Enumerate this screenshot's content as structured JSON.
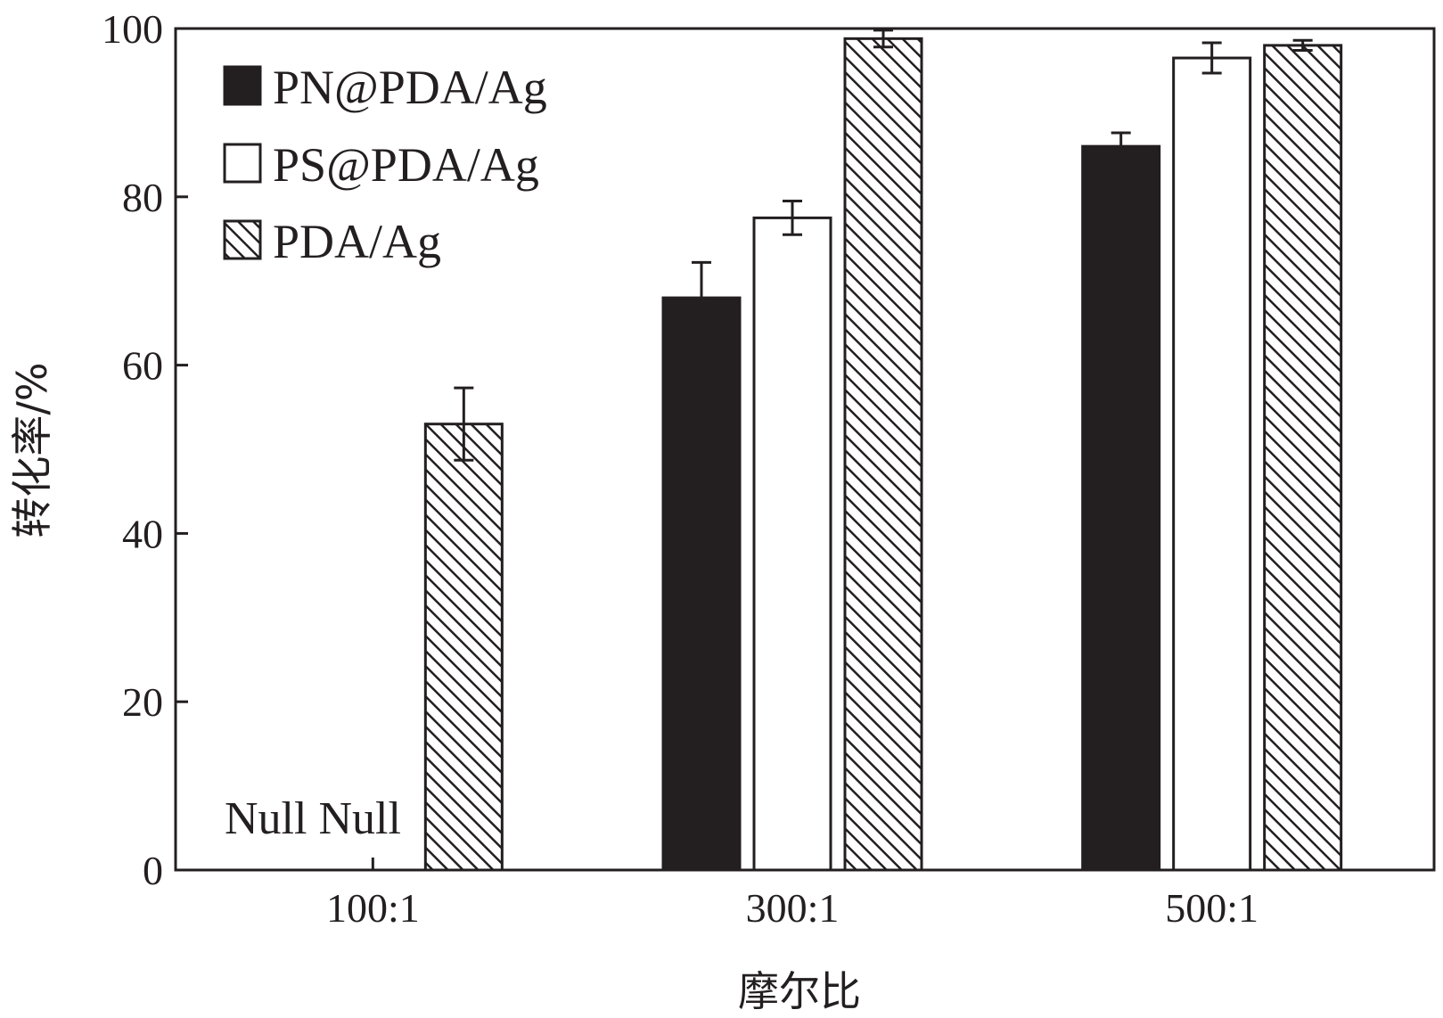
{
  "chart_data": {
    "type": "bar",
    "title": "",
    "xlabel": "摩尔比",
    "ylabel": "转化率/%",
    "categories": [
      "100:1",
      "300:1",
      "500:1"
    ],
    "ylim": [
      0,
      100
    ],
    "yticks": [
      0,
      20,
      40,
      60,
      80,
      100
    ],
    "grid": false,
    "legend_position": "top-left",
    "series": [
      {
        "name": "PN@PDA/Ag",
        "fill": "solid-black",
        "values": [
          null,
          68.0,
          86.0
        ],
        "errors": [
          null,
          4.2,
          1.6
        ]
      },
      {
        "name": "PS@PDA/Ag",
        "fill": "white",
        "values": [
          null,
          77.5,
          96.5
        ],
        "errors": [
          null,
          2.0,
          1.8
        ]
      },
      {
        "name": "PDA/Ag",
        "fill": "hatched",
        "values": [
          53.0,
          98.8,
          98.0
        ],
        "errors": [
          4.3,
          1.0,
          0.6
        ]
      }
    ],
    "annotations": [
      {
        "text": "Null Null",
        "category": "100:1"
      }
    ]
  },
  "colors": {
    "ink": "#231f20",
    "background": "#ffffff"
  }
}
